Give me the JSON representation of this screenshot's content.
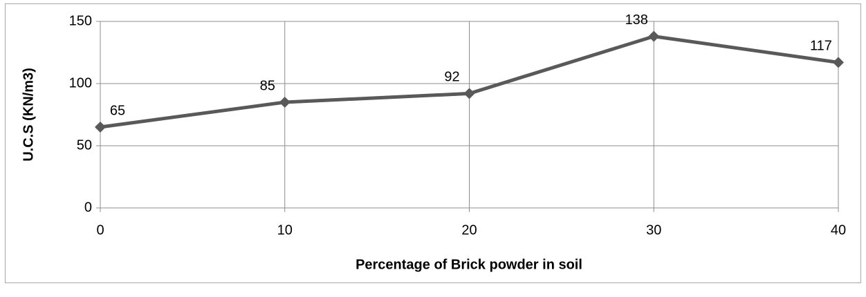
{
  "chart_data": {
    "type": "line",
    "x": [
      0,
      10,
      20,
      30,
      40
    ],
    "series": [
      {
        "name": "U.C.S",
        "color": "#595959",
        "values": [
          65,
          85,
          92,
          138,
          117
        ]
      }
    ],
    "xlabel": "Percentage of Brick powder in soil",
    "ylabel": "U.C.S (KN/m3)",
    "xlim": [
      0,
      40
    ],
    "xticks": [
      0,
      10,
      20,
      30,
      40
    ],
    "ylim": [
      0,
      150
    ],
    "yticks": [
      0,
      50,
      100,
      150
    ],
    "grid": true,
    "data_labels": true
  }
}
